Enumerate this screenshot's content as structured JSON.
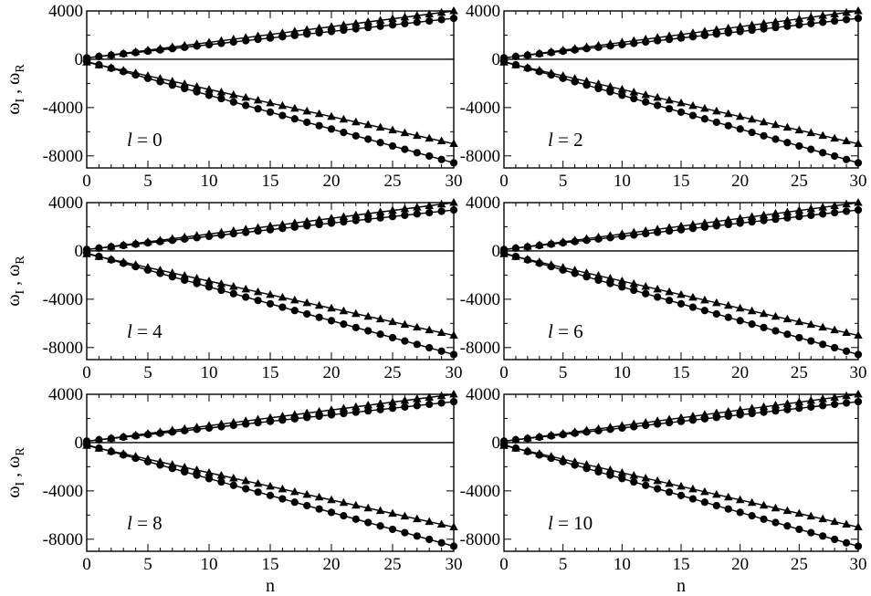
{
  "figure": {
    "xlabel": "n",
    "ylabel_main": "ω",
    "ylabel_sub_i": "I",
    "ylabel_sep": " , ω",
    "ylabel_sub_r": "R"
  },
  "chart_data": [
    {
      "type": "scatter",
      "panel_label": "l",
      "panel_value": "= 0",
      "xlim": [
        0,
        30
      ],
      "ylim": [
        -9000,
        4000
      ],
      "xticks": [
        "0",
        "5",
        "10",
        "15",
        "20",
        "25",
        "30"
      ],
      "yticks": [
        "4000",
        "0",
        "-4000",
        "-8000"
      ],
      "reference_line_y": 0,
      "series": [
        {
          "marker": "triangle",
          "branch": "upper",
          "slope": 130,
          "intercept": 100
        },
        {
          "marker": "circle",
          "branch": "upper",
          "slope": 109,
          "intercept": 120
        },
        {
          "marker": "triangle",
          "branch": "lower",
          "slope": -225,
          "intercept": -250
        },
        {
          "marker": "circle",
          "branch": "lower",
          "slope": -280,
          "intercept": -180
        }
      ]
    },
    {
      "type": "scatter",
      "panel_label": "l",
      "panel_value": "= 2",
      "xlim": [
        0,
        30
      ],
      "ylim": [
        -9000,
        4000
      ],
      "xticks": [
        "0",
        "5",
        "10",
        "15",
        "20",
        "25",
        "30"
      ],
      "yticks": [
        "4000",
        "0",
        "-4000",
        "-8000"
      ],
      "reference_line_y": 0,
      "series": [
        {
          "marker": "triangle",
          "branch": "upper",
          "slope": 130,
          "intercept": 100
        },
        {
          "marker": "circle",
          "branch": "upper",
          "slope": 109,
          "intercept": 120
        },
        {
          "marker": "triangle",
          "branch": "lower",
          "slope": -225,
          "intercept": -250
        },
        {
          "marker": "circle",
          "branch": "lower",
          "slope": -280,
          "intercept": -180
        }
      ]
    },
    {
      "type": "scatter",
      "panel_label": "l",
      "panel_value": "= 4",
      "xlim": [
        0,
        30
      ],
      "ylim": [
        -9000,
        4000
      ],
      "xticks": [
        "0",
        "5",
        "10",
        "15",
        "20",
        "25",
        "30"
      ],
      "yticks": [
        "4000",
        "0",
        "-4000",
        "-8000"
      ],
      "reference_line_y": 0,
      "series": [
        {
          "marker": "triangle",
          "branch": "upper",
          "slope": 130,
          "intercept": 100
        },
        {
          "marker": "circle",
          "branch": "upper",
          "slope": 109,
          "intercept": 120
        },
        {
          "marker": "triangle",
          "branch": "lower",
          "slope": -225,
          "intercept": -250
        },
        {
          "marker": "circle",
          "branch": "lower",
          "slope": -280,
          "intercept": -180
        }
      ]
    },
    {
      "type": "scatter",
      "panel_label": "l",
      "panel_value": "= 6",
      "xlim": [
        0,
        30
      ],
      "ylim": [
        -9000,
        4000
      ],
      "xticks": [
        "0",
        "5",
        "10",
        "15",
        "20",
        "25",
        "30"
      ],
      "yticks": [
        "4000",
        "0",
        "-4000",
        "-8000"
      ],
      "reference_line_y": 0,
      "series": [
        {
          "marker": "triangle",
          "branch": "upper",
          "slope": 130,
          "intercept": 100
        },
        {
          "marker": "circle",
          "branch": "upper",
          "slope": 109,
          "intercept": 120
        },
        {
          "marker": "triangle",
          "branch": "lower",
          "slope": -225,
          "intercept": -250
        },
        {
          "marker": "circle",
          "branch": "lower",
          "slope": -280,
          "intercept": -180
        }
      ]
    },
    {
      "type": "scatter",
      "panel_label": "l",
      "panel_value": "= 8",
      "xlim": [
        0,
        30
      ],
      "ylim": [
        -9000,
        4000
      ],
      "xticks": [
        "0",
        "5",
        "10",
        "15",
        "20",
        "25",
        "30"
      ],
      "yticks": [
        "4000",
        "0",
        "-4000",
        "-8000"
      ],
      "reference_line_y": 0,
      "series": [
        {
          "marker": "triangle",
          "branch": "upper",
          "slope": 130,
          "intercept": 100
        },
        {
          "marker": "circle",
          "branch": "upper",
          "slope": 109,
          "intercept": 120
        },
        {
          "marker": "triangle",
          "branch": "lower",
          "slope": -225,
          "intercept": -250
        },
        {
          "marker": "circle",
          "branch": "lower",
          "slope": -280,
          "intercept": -180
        }
      ]
    },
    {
      "type": "scatter",
      "panel_label": "l",
      "panel_value": "= 10",
      "xlim": [
        0,
        30
      ],
      "ylim": [
        -9000,
        4000
      ],
      "xticks": [
        "0",
        "5",
        "10",
        "15",
        "20",
        "25",
        "30"
      ],
      "yticks": [
        "4000",
        "0",
        "-4000",
        "-8000"
      ],
      "reference_line_y": 0,
      "series": [
        {
          "marker": "triangle",
          "branch": "upper",
          "slope": 130,
          "intercept": 100
        },
        {
          "marker": "circle",
          "branch": "upper",
          "slope": 109,
          "intercept": 120
        },
        {
          "marker": "triangle",
          "branch": "lower",
          "slope": -225,
          "intercept": -250
        },
        {
          "marker": "circle",
          "branch": "lower",
          "slope": -280,
          "intercept": -180
        }
      ]
    }
  ]
}
